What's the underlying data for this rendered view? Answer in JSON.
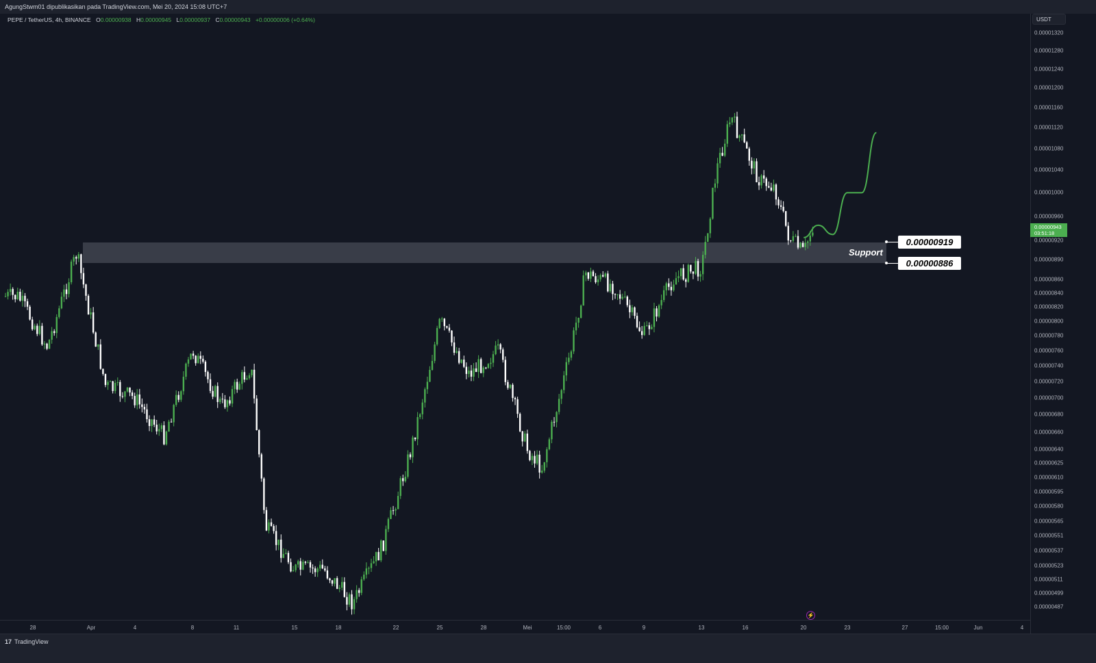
{
  "header": {
    "publish_text": "AgungStwm01 dipublikasikan pada TradingView.com, Mei 20, 2024 15:08 UTC+7"
  },
  "symbol": {
    "name": "PEPE / TetherUS, 4h, BINANCE",
    "open_label": "O",
    "open": "0.00000938",
    "high_label": "H",
    "high": "0.00000945",
    "low_label": "L",
    "low": "0.00000937",
    "close_label": "C",
    "close": "0.00000943",
    "change": "+0.00000006 (+0.64%)"
  },
  "currency": "USDT",
  "last_price": {
    "value": "0.00000943",
    "countdown": "03:51:18",
    "color": "#4caf50"
  },
  "colors": {
    "up": "#4caf50",
    "down": "#ffffff",
    "background": "#131722",
    "projection": "#4caf50"
  },
  "annotations": {
    "support_label": "Support",
    "upper_level": "0.00000919",
    "lower_level": "0.00000886"
  },
  "footer": {
    "brand": "TradingView"
  },
  "icons": {
    "flash": "flash-icon",
    "logo": "tradingview-logo-icon"
  },
  "chart_data": {
    "type": "candlestick",
    "symbol": "PEPE / TetherUS",
    "interval": "4h",
    "exchange": "BINANCE",
    "y_scale": "log",
    "ylim": [
      4.75e-06,
      1.335e-05
    ],
    "y_ticks": [
      "0.00001320",
      "0.00001280",
      "0.00001240",
      "0.00001200",
      "0.00001160",
      "0.00001120",
      "0.00001080",
      "0.00001040",
      "0.00001000",
      "0.00000960",
      "0.00000920",
      "0.00000890",
      "0.00000860",
      "0.00000840",
      "0.00000820",
      "0.00000800",
      "0.00000780",
      "0.00000760",
      "0.00000740",
      "0.00000720",
      "0.00000700",
      "0.00000680",
      "0.00000660",
      "0.00000640",
      "0.00000625",
      "0.00000610",
      "0.00000595",
      "0.00000580",
      "0.00000565",
      "0.00000551",
      "0.00000537",
      "0.00000523",
      "0.00000511",
      "0.00000499",
      "0.00000487"
    ],
    "x_ticks": [
      "28",
      "Apr",
      "4",
      "8",
      "11",
      "15",
      "18",
      "22",
      "25",
      "28",
      "Mei",
      "15:00",
      "6",
      "9",
      "13",
      "16",
      "20",
      "23",
      "27",
      "15:00",
      "Jun",
      "4"
    ],
    "support_zone": {
      "upper": 9.19e-06,
      "lower": 8.86e-06,
      "label": "Support"
    },
    "path_closes": [
      {
        "date": "2024-03-27",
        "close": 8.35e-06
      },
      {
        "date": "2024-03-29",
        "close": 7.65e-06
      },
      {
        "date": "2024-03-31",
        "close": 9e-06
      },
      {
        "date": "2024-04-02",
        "close": 7.15e-06
      },
      {
        "date": "2024-04-04",
        "close": 7e-06
      },
      {
        "date": "2024-04-06",
        "close": 6.55e-06
      },
      {
        "date": "2024-04-08",
        "close": 7.6e-06
      },
      {
        "date": "2024-04-10",
        "close": 6.9e-06
      },
      {
        "date": "2024-04-12",
        "close": 7.4e-06
      },
      {
        "date": "2024-04-13",
        "close": 5.6e-06
      },
      {
        "date": "2024-04-15",
        "close": 5.2e-06
      },
      {
        "date": "2024-04-17",
        "close": 5.2e-06
      },
      {
        "date": "2024-04-19",
        "close": 4.9e-06
      },
      {
        "date": "2024-04-21",
        "close": 5.4e-06
      },
      {
        "date": "2024-04-23",
        "close": 6.4e-06
      },
      {
        "date": "2024-04-25",
        "close": 8e-06
      },
      {
        "date": "2024-04-27",
        "close": 7.3e-06
      },
      {
        "date": "2024-04-29",
        "close": 7.6e-06
      },
      {
        "date": "2024-05-01",
        "close": 6.4e-06
      },
      {
        "date": "2024-05-02",
        "close": 6.2e-06
      },
      {
        "date": "2024-05-04",
        "close": 7.6e-06
      },
      {
        "date": "2024-05-05",
        "close": 8.7e-06
      },
      {
        "date": "2024-05-07",
        "close": 8.5e-06
      },
      {
        "date": "2024-05-09",
        "close": 7.8e-06
      },
      {
        "date": "2024-05-11",
        "close": 8.6e-06
      },
      {
        "date": "2024-05-13",
        "close": 8.8e-06
      },
      {
        "date": "2024-05-14",
        "close": 1.04e-05
      },
      {
        "date": "2024-05-15",
        "close": 1.14e-05
      },
      {
        "date": "2024-05-17",
        "close": 1.02e-05
      },
      {
        "date": "2024-05-18",
        "close": 1.01e-05
      },
      {
        "date": "2024-05-19",
        "close": 9.25e-06
      },
      {
        "date": "2024-05-20",
        "close": 9e-06
      },
      {
        "date": "2024-05-20 15:00",
        "close": 9.43e-06
      }
    ],
    "projection": [
      {
        "date": "2024-05-20",
        "close": 9.25e-06
      },
      {
        "date": "2024-05-21",
        "close": 9.45e-06
      },
      {
        "date": "2024-05-22",
        "close": 9.3e-06
      },
      {
        "date": "2024-05-23",
        "close": 1e-05
      },
      {
        "date": "2024-05-24",
        "close": 1e-05
      },
      {
        "date": "2024-05-25",
        "close": 1.11e-05
      }
    ]
  }
}
